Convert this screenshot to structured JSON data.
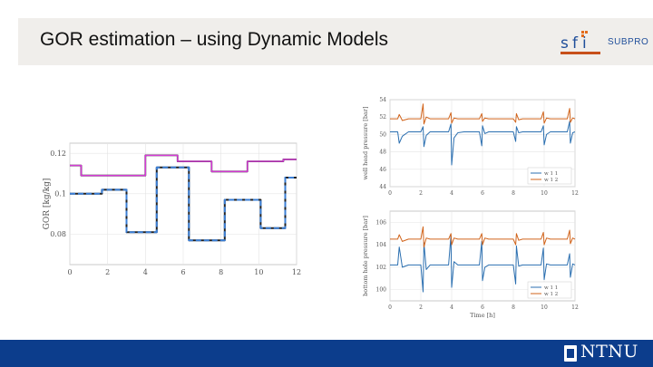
{
  "slide": {
    "title": "GOR estimation – using Dynamic Models",
    "logo_text": "SUBPRO",
    "footer_brand": "NTNU"
  },
  "chart_data": [
    {
      "id": "gor",
      "type": "line",
      "ylabel": "GOR [kg/kg]",
      "xlim": [
        0,
        12
      ],
      "ylim": [
        0.065,
        0.125
      ],
      "xticks": [
        0,
        2,
        4,
        6,
        8,
        10,
        12
      ],
      "yticks": [
        0.08,
        0.1,
        0.12
      ],
      "grid": true,
      "series": [
        {
          "color": "#222222",
          "style": "solid",
          "width": 1.8,
          "x": [
            0,
            0.6,
            0.6,
            2.3,
            2.3,
            4.0,
            4.0,
            5.7,
            5.7,
            7.5,
            7.5,
            9.4,
            9.4,
            11.3,
            11.3,
            12
          ],
          "y": [
            0.114,
            0.114,
            0.109,
            0.109,
            0.109,
            0.109,
            0.119,
            0.119,
            0.116,
            0.116,
            0.111,
            0.111,
            0.116,
            0.116,
            0.117,
            0.117
          ]
        },
        {
          "color": "#d63ad6",
          "style": "solid",
          "width": 1.4,
          "x": [
            0,
            0.6,
            0.6,
            2.3,
            2.3,
            4.0,
            4.0,
            5.7,
            5.7,
            7.5,
            7.5,
            9.4,
            9.4,
            11.3,
            11.3,
            12
          ],
          "y": [
            0.114,
            0.114,
            0.109,
            0.109,
            0.109,
            0.109,
            0.119,
            0.119,
            0.116,
            0.116,
            0.111,
            0.111,
            0.116,
            0.116,
            0.117,
            0.117
          ]
        },
        {
          "color": "#222222",
          "style": "solid",
          "width": 2.0,
          "x": [
            0,
            1.7,
            1.7,
            3.0,
            3.0,
            4.6,
            4.6,
            6.3,
            6.3,
            8.2,
            8.2,
            10.1,
            10.1,
            11.4,
            11.4,
            12
          ],
          "y": [
            0.1,
            0.1,
            0.102,
            0.102,
            0.081,
            0.081,
            0.113,
            0.113,
            0.077,
            0.077,
            0.097,
            0.097,
            0.083,
            0.083,
            0.108,
            0.108
          ]
        },
        {
          "color": "#3b7fd6",
          "style": "dashed",
          "width": 2.0,
          "x": [
            0,
            1.7,
            1.7,
            3.0,
            3.0,
            4.6,
            4.6,
            6.3,
            6.3,
            8.2,
            8.2,
            10.1,
            10.1,
            11.4,
            11.4,
            12
          ],
          "y": [
            0.1,
            0.1,
            0.102,
            0.102,
            0.081,
            0.081,
            0.113,
            0.113,
            0.077,
            0.077,
            0.097,
            0.097,
            0.083,
            0.083,
            0.108,
            0.108
          ]
        }
      ]
    },
    {
      "id": "whp",
      "type": "line",
      "ylabel": "well head pressure [bar]",
      "xlim": [
        0,
        12
      ],
      "ylim": [
        44,
        54
      ],
      "xticks": [
        0,
        2,
        4,
        6,
        8,
        10,
        12
      ],
      "yticks": [
        44,
        46,
        48,
        50,
        52,
        54
      ],
      "grid": true,
      "legend": {
        "position": "bottom-right",
        "entries": [
          "w 1 1",
          "w 1 2"
        ]
      },
      "series": [
        {
          "name": "w 1 1",
          "color": "#2b6fb0",
          "style": "solid",
          "width": 1.0,
          "x": [
            0,
            0.5,
            0.6,
            0.8,
            1.2,
            2.0,
            2.15,
            2.2,
            2.35,
            2.6,
            3.0,
            3.8,
            3.95,
            4.0,
            4.15,
            4.4,
            4.8,
            5.8,
            5.95,
            6.0,
            6.15,
            6.4,
            6.8,
            8.0,
            8.15,
            8.2,
            8.35,
            8.6,
            9.0,
            9.8,
            9.95,
            10.0,
            10.15,
            10.4,
            10.8,
            11.5,
            11.65,
            11.7,
            11.85,
            12
          ],
          "y": [
            50.3,
            50.3,
            49.0,
            49.8,
            50.3,
            50.3,
            50.9,
            48.6,
            49.9,
            50.3,
            50.3,
            50.3,
            51.2,
            46.5,
            49.6,
            50.2,
            50.3,
            50.3,
            48.7,
            51.0,
            50.1,
            50.3,
            50.3,
            50.3,
            49.2,
            50.9,
            50.2,
            50.3,
            50.3,
            50.3,
            51.0,
            48.8,
            50.0,
            50.3,
            50.3,
            50.3,
            51.5,
            49.0,
            50.2,
            50.3
          ]
        },
        {
          "name": "w 1 2",
          "color": "#d1631a",
          "style": "solid",
          "width": 1.0,
          "x": [
            0,
            0.5,
            0.6,
            0.8,
            1.2,
            2.0,
            2.15,
            2.2,
            2.35,
            2.6,
            3.0,
            3.8,
            3.95,
            4.0,
            4.15,
            4.4,
            4.8,
            5.8,
            5.95,
            6.0,
            6.15,
            6.4,
            6.8,
            8.0,
            8.15,
            8.2,
            8.35,
            8.6,
            9.0,
            9.8,
            9.95,
            10.0,
            10.15,
            10.4,
            10.8,
            11.5,
            11.65,
            11.7,
            11.85,
            12
          ],
          "y": [
            51.8,
            51.8,
            52.3,
            51.6,
            51.8,
            51.8,
            53.5,
            51.2,
            52.0,
            51.8,
            51.8,
            51.8,
            52.5,
            51.3,
            51.9,
            51.8,
            51.8,
            51.8,
            52.4,
            51.5,
            51.9,
            51.8,
            51.8,
            51.8,
            51.4,
            52.4,
            51.7,
            51.8,
            51.8,
            51.8,
            52.6,
            51.3,
            51.9,
            51.8,
            51.8,
            51.8,
            53.0,
            51.4,
            51.9,
            51.8
          ]
        }
      ]
    },
    {
      "id": "bhp",
      "type": "line",
      "ylabel": "bottom hole pressure [bar]",
      "xlabel": "Time [h]",
      "xlim": [
        0,
        12
      ],
      "ylim": [
        99,
        107
      ],
      "xticks": [
        0,
        2,
        4,
        6,
        8,
        10,
        12
      ],
      "yticks": [
        100,
        102,
        104,
        106
      ],
      "grid": true,
      "legend": {
        "position": "bottom-right",
        "entries": [
          "w 1 1",
          "w 1 2"
        ]
      },
      "series": [
        {
          "name": "w 1 1",
          "color": "#2b6fb0",
          "style": "solid",
          "width": 1.0,
          "x": [
            0,
            0.5,
            0.6,
            0.8,
            1.2,
            2.0,
            2.15,
            2.2,
            2.35,
            2.6,
            3.0,
            3.8,
            3.95,
            4.0,
            4.15,
            4.4,
            4.8,
            5.8,
            5.95,
            6.0,
            6.15,
            6.4,
            6.8,
            8.0,
            8.15,
            8.2,
            8.35,
            8.6,
            9.0,
            9.8,
            9.95,
            10.0,
            10.15,
            10.4,
            10.8,
            11.5,
            11.65,
            11.7,
            11.85,
            12
          ],
          "y": [
            102.2,
            102.2,
            103.8,
            102.0,
            102.2,
            102.2,
            99.8,
            104.2,
            101.8,
            102.2,
            102.2,
            102.2,
            104.8,
            100.2,
            102.5,
            102.2,
            102.2,
            102.2,
            104.3,
            100.8,
            102.0,
            102.2,
            102.2,
            102.2,
            100.5,
            103.9,
            102.1,
            102.2,
            102.2,
            102.2,
            103.7,
            100.9,
            102.3,
            102.2,
            102.2,
            102.2,
            103.2,
            101.1,
            102.3,
            102.2
          ]
        },
        {
          "name": "w 1 2",
          "color": "#d1631a",
          "style": "solid",
          "width": 1.0,
          "x": [
            0,
            0.5,
            0.6,
            0.8,
            1.2,
            2.0,
            2.15,
            2.2,
            2.35,
            2.6,
            3.0,
            3.8,
            3.95,
            4.0,
            4.15,
            4.4,
            4.8,
            5.8,
            5.95,
            6.0,
            6.15,
            6.4,
            6.8,
            8.0,
            8.15,
            8.2,
            8.35,
            8.6,
            9.0,
            9.8,
            9.95,
            10.0,
            10.15,
            10.4,
            10.8,
            11.5,
            11.65,
            11.7,
            11.85,
            12
          ],
          "y": [
            104.5,
            104.5,
            104.9,
            104.3,
            104.5,
            104.5,
            105.6,
            103.8,
            104.6,
            104.5,
            104.5,
            104.5,
            105.0,
            104.0,
            104.6,
            104.5,
            104.5,
            104.5,
            105.0,
            104.0,
            104.6,
            104.5,
            104.5,
            104.5,
            104.0,
            105.0,
            104.4,
            104.5,
            104.5,
            104.5,
            105.1,
            104.0,
            104.6,
            104.5,
            104.5,
            104.5,
            105.3,
            104.1,
            104.6,
            104.5
          ]
        }
      ]
    }
  ]
}
